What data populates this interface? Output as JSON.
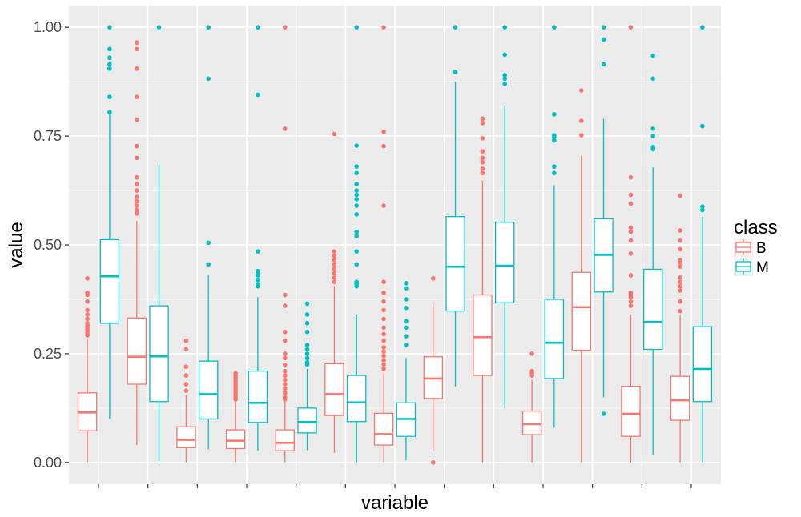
{
  "chart_data": {
    "type": "boxplot",
    "title": "",
    "xlabel": "variable",
    "ylabel": "value",
    "ylim": [
      -0.05,
      1.05
    ],
    "yticks": [
      "0.00",
      "0.25",
      "0.50",
      "0.75",
      "1.00"
    ],
    "ytick_values": [
      0,
      0.25,
      0.5,
      0.75,
      1.0
    ],
    "x_tick_labels_printed": false,
    "grid": true,
    "legend": {
      "title": "class",
      "position": "right"
    },
    "series": [
      {
        "name": "B",
        "color": "#f8766d",
        "boxes": [
          {
            "whisker_low": 0.0,
            "q1": 0.073,
            "median": 0.115,
            "q3": 0.16,
            "whisker_high": 0.285,
            "outliers": [
              0.292,
              0.295,
              0.3,
              0.305,
              0.31,
              0.315,
              0.32,
              0.33,
              0.34,
              0.35,
              0.37,
              0.385,
              0.39,
              0.423
            ]
          },
          {
            "whisker_low": 0.04,
            "q1": 0.18,
            "median": 0.243,
            "q3": 0.332,
            "whisker_high": 0.555,
            "outliers": [
              0.572,
              0.58,
              0.59,
              0.6,
              0.61,
              0.625,
              0.64,
              0.655,
              0.7,
              0.727,
              0.788,
              0.84,
              0.905,
              0.95,
              0.965
            ]
          },
          {
            "whisker_low": 0.0,
            "q1": 0.034,
            "median": 0.052,
            "q3": 0.082,
            "whisker_high": 0.155,
            "outliers": [
              0.165,
              0.18,
              0.2,
              0.22,
              0.26,
              0.28
            ]
          },
          {
            "whisker_low": 0.0,
            "q1": 0.032,
            "median": 0.05,
            "q3": 0.075,
            "whisker_high": 0.14,
            "outliers": [
              0.145,
              0.15,
              0.155,
              0.16,
              0.165,
              0.17,
              0.175,
              0.18,
              0.185,
              0.19,
              0.195,
              0.2,
              0.205
            ]
          },
          {
            "whisker_low": 0.0,
            "q1": 0.027,
            "median": 0.045,
            "q3": 0.075,
            "whisker_high": 0.14,
            "outliers": [
              0.145,
              0.15,
              0.16,
              0.17,
              0.18,
              0.19,
              0.2,
              0.21,
              0.225,
              0.24,
              0.25,
              0.28,
              0.3,
              0.36,
              0.385,
              0.767,
              1.0
            ]
          },
          {
            "whisker_low": 0.022,
            "q1": 0.108,
            "median": 0.157,
            "q3": 0.227,
            "whisker_high": 0.405,
            "outliers": [
              0.415,
              0.425,
              0.435,
              0.445,
              0.455,
              0.465,
              0.475,
              0.485,
              0.755
            ]
          },
          {
            "whisker_low": 0.0,
            "q1": 0.04,
            "median": 0.065,
            "q3": 0.113,
            "whisker_high": 0.205,
            "outliers": [
              0.215,
              0.225,
              0.235,
              0.245,
              0.255,
              0.265,
              0.28,
              0.295,
              0.31,
              0.33,
              0.35,
              0.37,
              0.39,
              0.415,
              0.59,
              0.727,
              0.76,
              1.0
            ]
          },
          {
            "whisker_low": 0.025,
            "q1": 0.147,
            "median": 0.193,
            "q3": 0.243,
            "whisker_high": 0.367,
            "outliers": [
              0.0,
              0.423
            ]
          },
          {
            "whisker_low": 0.0,
            "q1": 0.2,
            "median": 0.288,
            "q3": 0.385,
            "whisker_high": 0.648,
            "outliers": [
              0.665,
              0.675,
              0.69,
              0.7,
              0.715,
              0.745,
              0.78,
              0.79
            ]
          },
          {
            "whisker_low": 0.0,
            "q1": 0.064,
            "median": 0.088,
            "q3": 0.118,
            "whisker_high": 0.19,
            "outliers": [
              0.2,
              0.205,
              0.21,
              0.25
            ]
          },
          {
            "whisker_low": 0.0,
            "q1": 0.258,
            "median": 0.357,
            "q3": 0.437,
            "whisker_high": 0.705,
            "outliers": [
              0.752,
              0.785,
              0.855
            ]
          },
          {
            "whisker_low": 0.0,
            "q1": 0.06,
            "median": 0.112,
            "q3": 0.175,
            "whisker_high": 0.34,
            "outliers": [
              0.36,
              0.37,
              0.38,
              0.385,
              0.39,
              0.43,
              0.48,
              0.51,
              0.53,
              0.54,
              0.595,
              0.615,
              0.655,
              1.0
            ]
          },
          {
            "whisker_low": 0.0,
            "q1": 0.097,
            "median": 0.143,
            "q3": 0.198,
            "whisker_high": 0.34,
            "outliers": [
              0.348,
              0.37,
              0.395,
              0.405,
              0.415,
              0.425,
              0.45,
              0.46,
              0.465,
              0.49,
              0.51,
              0.533,
              0.613
            ]
          }
        ]
      },
      {
        "name": "M",
        "color": "#00bfc4",
        "boxes": [
          {
            "whisker_low": 0.1,
            "q1": 0.32,
            "median": 0.428,
            "q3": 0.512,
            "whisker_high": 0.8,
            "outliers": [
              0.805,
              0.84,
              0.905,
              0.915,
              0.93,
              0.95,
              1.0
            ]
          },
          {
            "whisker_low": 0.0,
            "q1": 0.14,
            "median": 0.244,
            "q3": 0.36,
            "whisker_high": 0.685,
            "outliers": [
              1.0
            ]
          },
          {
            "whisker_low": 0.03,
            "q1": 0.1,
            "median": 0.157,
            "q3": 0.233,
            "whisker_high": 0.43,
            "outliers": [
              0.455,
              0.505,
              0.882,
              1.0
            ]
          },
          {
            "whisker_low": 0.027,
            "q1": 0.092,
            "median": 0.137,
            "q3": 0.21,
            "whisker_high": 0.38,
            "outliers": [
              0.405,
              0.41,
              0.42,
              0.43,
              0.435,
              0.44,
              0.485,
              0.845,
              1.0
            ]
          },
          {
            "whisker_low": 0.028,
            "q1": 0.068,
            "median": 0.093,
            "q3": 0.125,
            "whisker_high": 0.215,
            "outliers": [
              0.225,
              0.23,
              0.24,
              0.25,
              0.26,
              0.27,
              0.3,
              0.32,
              0.34,
              0.365
            ]
          },
          {
            "whisker_low": 0.0,
            "q1": 0.094,
            "median": 0.138,
            "q3": 0.2,
            "whisker_high": 0.34,
            "outliers": [
              0.405,
              0.41,
              0.415,
              0.455,
              0.485,
              0.52,
              0.53,
              0.57,
              0.59,
              0.605,
              0.615,
              0.625,
              0.64,
              0.665,
              0.68,
              0.728,
              1.0
            ]
          },
          {
            "whisker_low": 0.005,
            "q1": 0.06,
            "median": 0.1,
            "q3": 0.137,
            "whisker_high": 0.24,
            "outliers": [
              0.27,
              0.29,
              0.31,
              0.325,
              0.355,
              0.375,
              0.4,
              0.412
            ]
          },
          {
            "whisker_low": 0.175,
            "q1": 0.348,
            "median": 0.45,
            "q3": 0.565,
            "whisker_high": 0.875,
            "outliers": [
              0.897,
              1.0
            ]
          },
          {
            "whisker_low": 0.125,
            "q1": 0.367,
            "median": 0.452,
            "q3": 0.552,
            "whisker_high": 0.82,
            "outliers": [
              0.87,
              0.882,
              0.89,
              0.937,
              1.0
            ]
          },
          {
            "whisker_low": 0.08,
            "q1": 0.193,
            "median": 0.275,
            "q3": 0.375,
            "whisker_high": 0.637,
            "outliers": [
              0.665,
              0.68,
              0.74,
              0.747,
              0.752,
              0.8,
              1.0
            ]
          },
          {
            "whisker_low": 0.15,
            "q1": 0.392,
            "median": 0.477,
            "q3": 0.56,
            "whisker_high": 0.79,
            "outliers": [
              0.112,
              0.915,
              0.972,
              1.0
            ]
          },
          {
            "whisker_low": 0.018,
            "q1": 0.26,
            "median": 0.323,
            "q3": 0.444,
            "whisker_high": 0.678,
            "outliers": [
              0.72,
              0.725,
              0.75,
              0.767,
              0.882,
              0.935
            ]
          },
          {
            "whisker_low": 0.0,
            "q1": 0.14,
            "median": 0.215,
            "q3": 0.312,
            "whisker_high": 0.565,
            "outliers": [
              0.58,
              0.588,
              0.773,
              1.0
            ]
          }
        ]
      }
    ]
  }
}
